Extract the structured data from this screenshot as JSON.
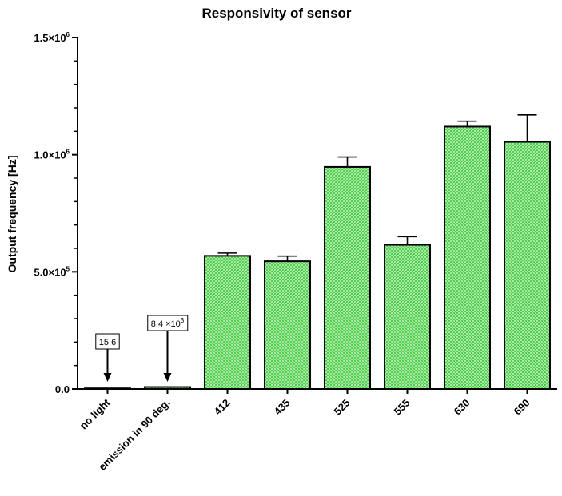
{
  "chart_data": {
    "type": "bar",
    "title": "Responsivity of sensor",
    "xlabel": "",
    "ylabel": "Output frequency [Hz]",
    "ylim": [
      0,
      1500000
    ],
    "y_ticks": [
      {
        "value": 0,
        "base": "0.0",
        "exp": ""
      },
      {
        "value": 500000,
        "base": "5.0×10",
        "exp": "5"
      },
      {
        "value": 1000000,
        "base": "1.0×10",
        "exp": "6"
      },
      {
        "value": 1500000,
        "base": "1.5×10",
        "exp": "6"
      }
    ],
    "categories": [
      "no light",
      "emission in 90 deg.",
      "412",
      "435",
      "525",
      "555",
      "630",
      "690"
    ],
    "values": [
      15.6,
      8400,
      568000,
      545000,
      948000,
      615000,
      1120000,
      1055000
    ],
    "errors": [
      0,
      0,
      12000,
      22000,
      42000,
      35000,
      23000,
      115000
    ],
    "annotations": [
      {
        "category": "no light",
        "base": "15.6",
        "exp": ""
      },
      {
        "category": "emission in 90 deg.",
        "base": "8.4 ×10",
        "exp": "3"
      }
    ],
    "bar_fill": "#b8ecb0",
    "bar_pattern": "#3cc83c",
    "bar_stroke": "#000000",
    "grid": false,
    "legend": "none"
  }
}
